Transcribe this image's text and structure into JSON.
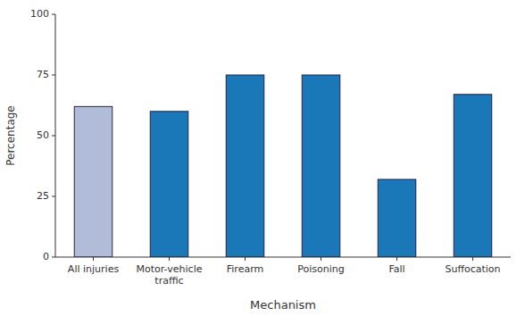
{
  "chart_data": {
    "type": "bar",
    "categories": [
      "All injuries",
      "Motor-vehicle\ntraffic",
      "Firearm",
      "Poisoning",
      "Fall",
      "Suffocation"
    ],
    "values": [
      62,
      60,
      75,
      75,
      32,
      67
    ],
    "colors": [
      "#b0bcd8",
      "#1b78b8",
      "#1b78b8",
      "#1b78b8",
      "#1b78b8",
      "#1b78b8"
    ],
    "xlabel": "Mechanism",
    "ylabel": "Percentage",
    "ylim": [
      0,
      100
    ],
    "yticks": [
      0,
      25,
      50,
      75,
      100
    ],
    "grid": false
  }
}
